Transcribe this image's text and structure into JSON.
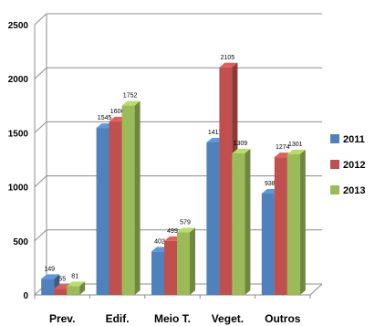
{
  "chart_data": {
    "type": "bar",
    "style": "3d-clustered-column",
    "categories": [
      "Prev.",
      "Edif.",
      "Meio T.",
      "Veget.",
      "Outros"
    ],
    "series": [
      {
        "name": "2011",
        "values": [
          149,
          1545,
          402,
          1411,
          938
        ],
        "color": "#4f81bd"
      },
      {
        "name": "2012",
        "values": [
          55,
          1606,
          499,
          2105,
          1274
        ],
        "color": "#c0504d"
      },
      {
        "name": "2013",
        "values": [
          81,
          1752,
          579,
          1309,
          1301
        ],
        "color": "#9bbb59"
      }
    ],
    "ylim": [
      0,
      2500
    ],
    "yticks": [
      0,
      500,
      1000,
      1500,
      2000,
      2500
    ],
    "grid": true,
    "legend": "right"
  }
}
